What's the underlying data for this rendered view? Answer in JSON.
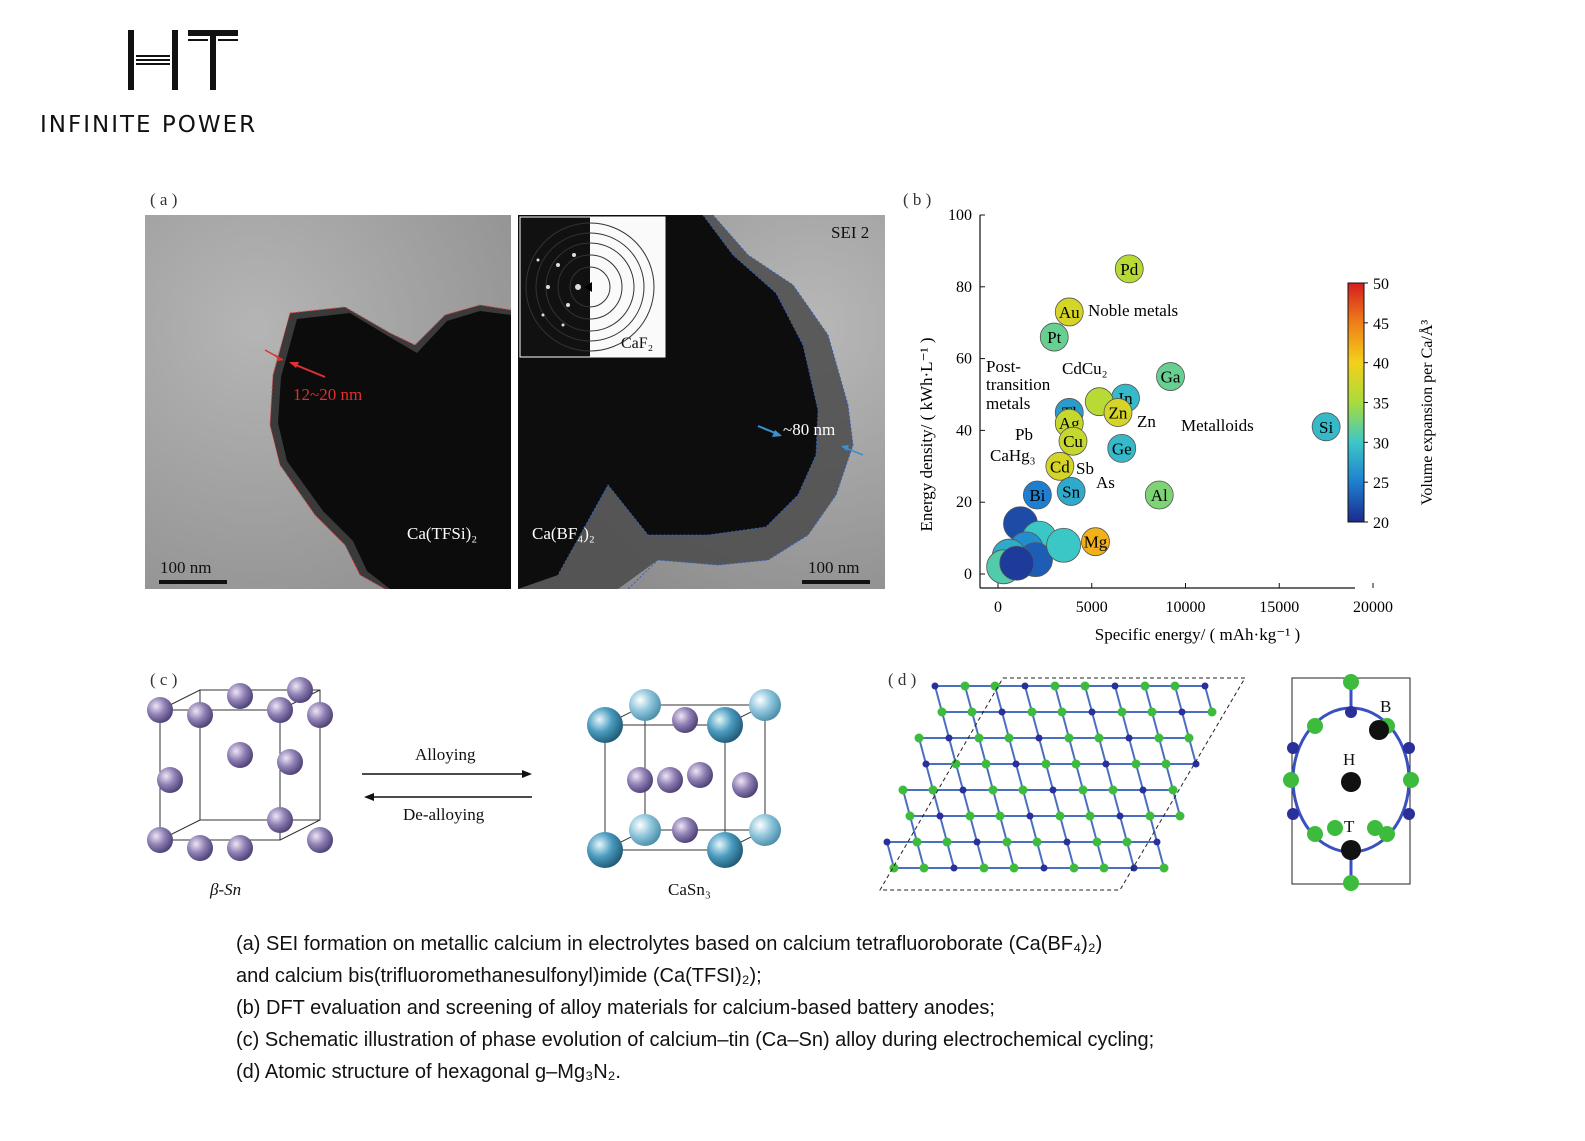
{
  "brand": {
    "logo_letters": "HT",
    "tagline": "INFINITE POWER"
  },
  "panel_a": {
    "label": "( a )",
    "left_image": {
      "thickness": "12~20 nm",
      "electrolyte": "Ca(TFSi)₂",
      "scale": "100 nm"
    },
    "right_image": {
      "tag": "SEI 2",
      "inset": "CaF₂",
      "thickness": "~80 nm",
      "electrolyte": "Ca(BF₄)₂",
      "scale": "100 nm"
    }
  },
  "panel_b": {
    "label": "( b )"
  },
  "chart_data": {
    "type": "scatter",
    "xlabel": "Specific energy/ ( mAh·kg⁻¹ )",
    "ylabel": "Energy density/ ( kWh·L⁻¹ )",
    "xlim": [
      0,
      20000
    ],
    "ylim": [
      0,
      100
    ],
    "xticks": [
      "0",
      "5000",
      "10000",
      "15000",
      "20000"
    ],
    "yticks": [
      "0",
      "20",
      "40",
      "60",
      "80",
      "100"
    ],
    "colorbar": {
      "label": "Volume expansion per Ca/Å³",
      "range": [
        20,
        50
      ],
      "ticks": [
        "20",
        "25",
        "30",
        "35",
        "40",
        "45",
        "50"
      ]
    },
    "points": [
      {
        "label": "Pd",
        "x": 7000,
        "y": 85,
        "c": 36
      },
      {
        "label": "Au",
        "x": 3800,
        "y": 73,
        "c": 38
      },
      {
        "label": "Pt",
        "x": 3000,
        "y": 66,
        "c": 32
      },
      {
        "label": "Ga",
        "x": 9200,
        "y": 55,
        "c": 32
      },
      {
        "label": "In",
        "x": 6800,
        "y": 49,
        "c": 29
      },
      {
        "label": "CdCu₂",
        "x": 5400,
        "y": 48,
        "c": 36
      },
      {
        "label": "Zn",
        "x": 6400,
        "y": 45,
        "c": 38
      },
      {
        "label": "Tl",
        "x": 3800,
        "y": 45,
        "c": 27
      },
      {
        "label": "Ag",
        "x": 3800,
        "y": 42,
        "c": 37
      },
      {
        "label": "Cu",
        "x": 4000,
        "y": 37,
        "c": 37
      },
      {
        "label": "Ge",
        "x": 6600,
        "y": 35,
        "c": 29
      },
      {
        "label": "Si",
        "x": 17500,
        "y": 41,
        "c": 29
      },
      {
        "label": "Cd",
        "x": 3300,
        "y": 30,
        "c": 38
      },
      {
        "label": "Sn",
        "x": 3900,
        "y": 23,
        "c": 28
      },
      {
        "label": "Bi",
        "x": 2100,
        "y": 22,
        "c": 25
      },
      {
        "label": "Al",
        "x": 8600,
        "y": 22,
        "c": 33
      },
      {
        "label": "Mg",
        "x": 5200,
        "y": 9,
        "c": 42
      },
      {
        "label": "",
        "x": 1200,
        "y": 14,
        "c": 22
      },
      {
        "label": "",
        "x": 2200,
        "y": 10,
        "c": 30
      },
      {
        "label": "",
        "x": 1500,
        "y": 7,
        "c": 26
      },
      {
        "label": "",
        "x": 600,
        "y": 5,
        "c": 28
      },
      {
        "label": "",
        "x": 2000,
        "y": 4,
        "c": 23
      },
      {
        "label": "",
        "x": 300,
        "y": 2,
        "c": 31
      },
      {
        "label": "",
        "x": 1000,
        "y": 3,
        "c": 21
      },
      {
        "label": "",
        "x": 3500,
        "y": 8,
        "c": 30
      }
    ],
    "annotations": [
      "Noble metals",
      "Post-",
      "transition",
      "metals",
      "Metalloids",
      "CdCu₂",
      "Zn",
      "Pb",
      "CaHg₃",
      "Sb",
      "As"
    ]
  },
  "panel_c": {
    "label": "( c )",
    "forward": "Alloying",
    "reverse": "De-alloying",
    "left_structure": "β-Sn",
    "right_structure": "CaSn₃"
  },
  "panel_d": {
    "label": "( d )",
    "site_b": "B",
    "site_h": "H",
    "site_t": "T"
  },
  "caption": {
    "line1": "(a) SEI formation on metallic calcium in electrolytes based on calcium tetrafluoroborate (Ca(BF₄)₂)",
    "line2": "and calcium bis(trifluoromethanesulfonyl)imide (Ca(TFSI)₂);",
    "line3": "(b) DFT evaluation and screening of alloy materials for calcium-based battery anodes;",
    "line4": "(c) Schematic illustration of phase evolution of calcium–tin (Ca–Sn) alloy during electrochemical cycling;",
    "line5": "(d) Atomic structure of hexagonal g–Mg₃N₂."
  }
}
